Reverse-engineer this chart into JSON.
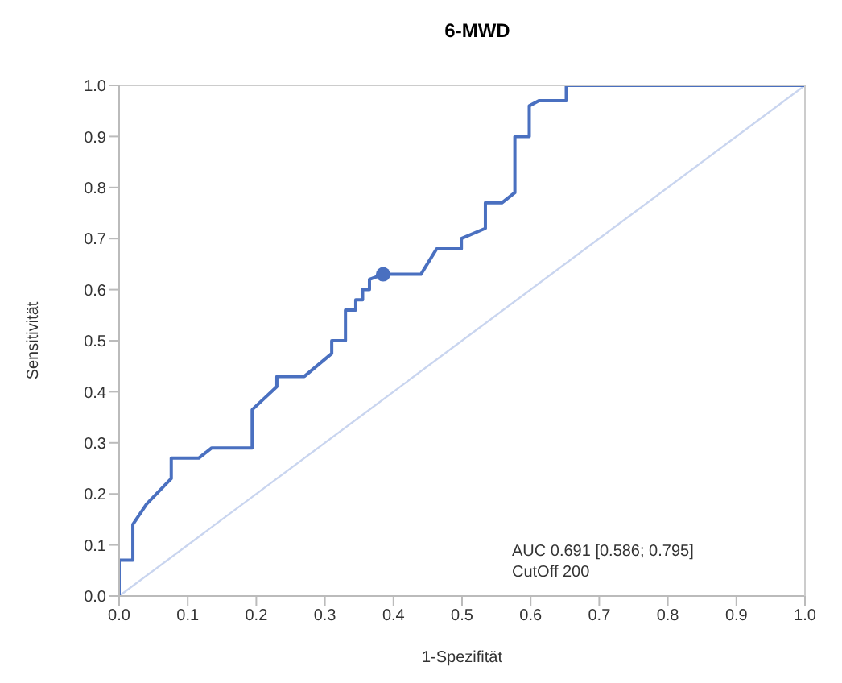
{
  "chart_data": {
    "type": "line",
    "title": "6-MWD",
    "xlabel": "1-Spezifität",
    "ylabel": "Sensitivität",
    "xlim": [
      0,
      1
    ],
    "ylim": [
      0,
      1
    ],
    "xticks": [
      {
        "value": 0,
        "label": "0.0"
      },
      0.1,
      0.2,
      0.3,
      0.4,
      0.5,
      0.6,
      0.7,
      0.8,
      0.9,
      {
        "value": 1,
        "label": "1.0"
      }
    ],
    "yticks": [
      {
        "value": 0,
        "label": "0.0"
      },
      0.1,
      0.2,
      0.3,
      0.4,
      0.5,
      0.6,
      0.7,
      0.8,
      0.9,
      {
        "value": 1,
        "label": "1.0"
      }
    ],
    "grid": false,
    "series": [
      {
        "color": "#c9d5ef",
        "marker": "none",
        "x": [
          0,
          1
        ],
        "values": [
          0,
          1
        ]
      },
      {
        "color": "#4a70c0",
        "marker": "none",
        "x": [
          0,
          0,
          0.02,
          0.02,
          0.04,
          0.076,
          0.076,
          0.116,
          0.135,
          0.194,
          0.194,
          0.23,
          0.23,
          0.27,
          0.31,
          0.31,
          0.33,
          0.33,
          0.345,
          0.345,
          0.355,
          0.355,
          0.365,
          0.365,
          0.385,
          0.44,
          0.463,
          0.499,
          0.499,
          0.534,
          0.534,
          0.558,
          0.577,
          0.577,
          0.598,
          0.598,
          0.612,
          0.652,
          0.652,
          1.0
        ],
        "values": [
          0,
          0.07,
          0.07,
          0.14,
          0.18,
          0.23,
          0.27,
          0.27,
          0.29,
          0.29,
          0.365,
          0.41,
          0.43,
          0.43,
          0.475,
          0.5,
          0.5,
          0.56,
          0.56,
          0.58,
          0.58,
          0.6,
          0.6,
          0.62,
          0.63,
          0.63,
          0.68,
          0.68,
          0.7,
          0.72,
          0.77,
          0.77,
          0.79,
          0.9,
          0.9,
          0.96,
          0.97,
          0.97,
          1.0,
          1.0
        ]
      },
      {
        "type": "scatter",
        "color": "#4a70c0",
        "marker": "circle",
        "x": [
          0.385
        ],
        "values": [
          0.63
        ]
      }
    ],
    "annotations": [
      "AUC 0.691 [0.586; 0.795]",
      "CutOff 200"
    ]
  }
}
